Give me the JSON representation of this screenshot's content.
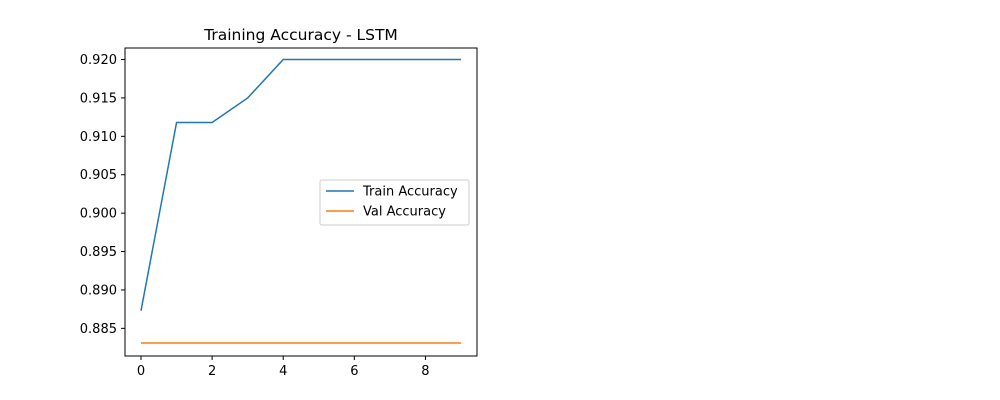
{
  "chart_data": {
    "type": "line",
    "title": "Training Accuracy - LSTM",
    "xlabel": "",
    "ylabel": "",
    "x": [
      0,
      1,
      2,
      3,
      4,
      5,
      6,
      7,
      8,
      9
    ],
    "xlim": [
      -0.45,
      9.45
    ],
    "ylim": [
      0.8814,
      0.9215
    ],
    "xticks": [
      0,
      2,
      4,
      6,
      8
    ],
    "xtick_labels": [
      "0",
      "2",
      "4",
      "6",
      "8"
    ],
    "yticks": [
      0.885,
      0.89,
      0.895,
      0.9,
      0.905,
      0.91,
      0.915,
      0.92
    ],
    "ytick_labels": [
      "0.885",
      "0.890",
      "0.895",
      "0.900",
      "0.905",
      "0.910",
      "0.915",
      "0.920"
    ],
    "grid": false,
    "legend_position": "center-right",
    "series": [
      {
        "name": "Train Accuracy",
        "color": "#1f77b4",
        "values": [
          0.8873,
          0.9118,
          0.9118,
          0.915,
          0.92,
          0.92,
          0.92,
          0.92,
          0.92,
          0.92
        ]
      },
      {
        "name": "Val Accuracy",
        "color": "#ff7f0e",
        "values": [
          0.8831,
          0.8831,
          0.8831,
          0.8831,
          0.8831,
          0.8831,
          0.8831,
          0.8831,
          0.8831,
          0.8831
        ]
      }
    ]
  }
}
